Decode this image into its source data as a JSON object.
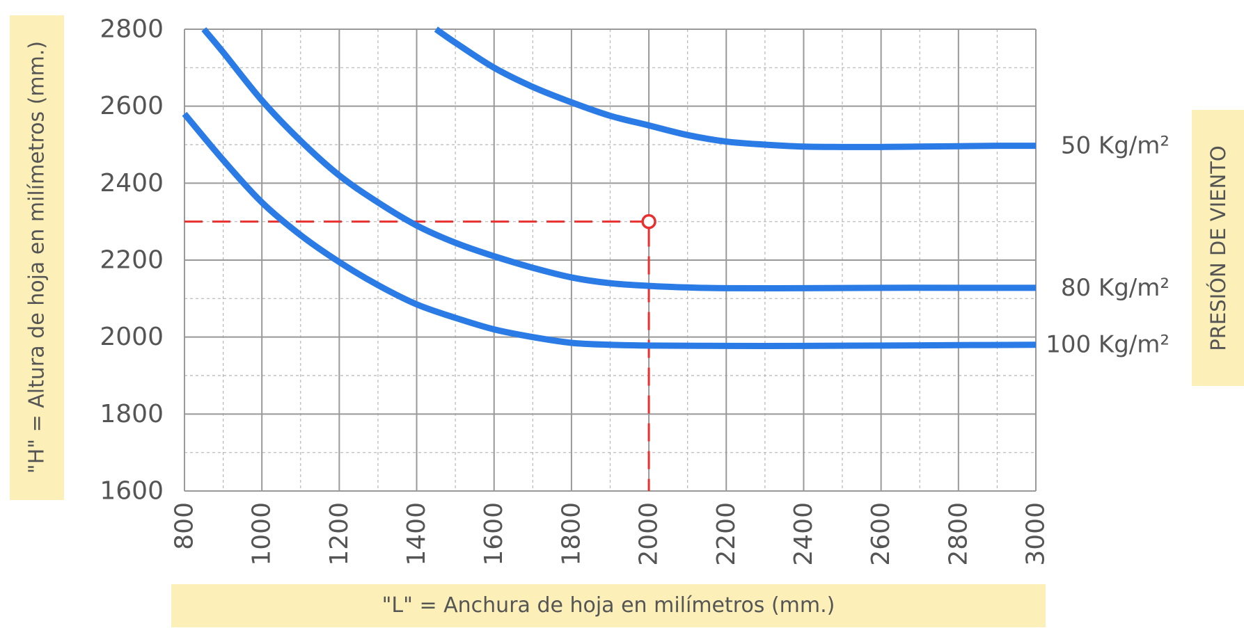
{
  "chart_data": {
    "type": "line",
    "xlabel": "\"L\"  =  Anchura de hoja en milímetros (mm.)",
    "ylabel": "\"H\"  =  Altura de hoja en milímetros (mm.)",
    "legend_title": "PRESIÓN DE VIENTO",
    "xlim": [
      800,
      3000
    ],
    "ylim": [
      1600,
      2800
    ],
    "x_ticks": [
      800,
      1000,
      1200,
      1400,
      1600,
      1800,
      2000,
      2200,
      2400,
      2600,
      2800,
      3000
    ],
    "y_ticks": [
      1600,
      1800,
      2000,
      2200,
      2400,
      2600,
      2800
    ],
    "grid": true,
    "colors": {
      "series": "#2a7be6",
      "guide": "#e8312f",
      "label_box": "#fcf0b8",
      "text": "#555555"
    },
    "series": [
      {
        "name": "50 Kg/m²",
        "x": [
          1450,
          1500,
          1600,
          1700,
          1800,
          1900,
          2000,
          2100,
          2200,
          2300,
          2400,
          2500,
          2600,
          2700,
          2800,
          2900,
          3000
        ],
        "y": [
          2800,
          2765,
          2700,
          2650,
          2610,
          2575,
          2550,
          2525,
          2508,
          2500,
          2495,
          2494,
          2494,
          2495,
          2496,
          2497,
          2497
        ]
      },
      {
        "name": "80 Kg/m²",
        "x": [
          850,
          900,
          1000,
          1100,
          1200,
          1300,
          1400,
          1500,
          1600,
          1700,
          1800,
          1900,
          2000,
          2100,
          2200,
          2400,
          2600,
          2800,
          3000
        ],
        "y": [
          2800,
          2740,
          2615,
          2510,
          2420,
          2350,
          2290,
          2245,
          2210,
          2180,
          2155,
          2140,
          2133,
          2129,
          2127,
          2127,
          2128,
          2128,
          2128
        ]
      },
      {
        "name": "100 Kg/m²",
        "x": [
          800,
          900,
          1000,
          1100,
          1200,
          1300,
          1400,
          1500,
          1600,
          1700,
          1800,
          1900,
          2000,
          2200,
          2400,
          2600,
          2800,
          3000
        ],
        "y": [
          2580,
          2460,
          2350,
          2265,
          2195,
          2135,
          2085,
          2050,
          2020,
          2000,
          1985,
          1980,
          1978,
          1977,
          1977,
          1978,
          1979,
          1980
        ]
      }
    ],
    "annotation": {
      "x": 2000,
      "y": 2300
    }
  }
}
